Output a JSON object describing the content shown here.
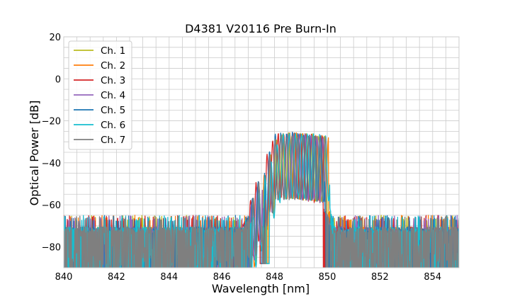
{
  "chart_data": {
    "type": "line",
    "title": "D4381 V20116 Pre Burn-In",
    "xlabel": "Wavelength [nm]",
    "ylabel": "Optical Power [dB]",
    "xlim": [
      840,
      855
    ],
    "ylim": [
      -90,
      20
    ],
    "x_ticks": [
      840,
      842,
      844,
      846,
      848,
      850,
      852,
      854
    ],
    "x_tick_labels": [
      "840",
      "842",
      "844",
      "846",
      "848",
      "850",
      "852",
      "854"
    ],
    "y_ticks": [
      20,
      0,
      -20,
      -40,
      -60,
      -80
    ],
    "y_tick_labels": [
      "20",
      "0",
      "−20",
      "−40",
      "−60",
      "−80"
    ],
    "x_minor_step": 0.5,
    "y_minor_step": 5,
    "grid": true,
    "legend_position": "top-left",
    "noise_floor_db": -72,
    "series": [
      {
        "name": "Ch. 1",
        "color": "#bcbd22",
        "center_nm": 848.55,
        "peak_db": -25.5,
        "seed": 11
      },
      {
        "name": "Ch. 2",
        "color": "#ff7f0e",
        "center_nm": 848.6,
        "peak_db": -24.5,
        "seed": 23
      },
      {
        "name": "Ch. 3",
        "color": "#d62728",
        "center_nm": 848.4,
        "peak_db": -25.5,
        "seed": 37
      },
      {
        "name": "Ch. 4",
        "color": "#9467bd",
        "center_nm": 848.5,
        "peak_db": -24.5,
        "seed": 41
      },
      {
        "name": "Ch. 5",
        "color": "#1f77b4",
        "center_nm": 848.45,
        "peak_db": -24.0,
        "seed": 53
      },
      {
        "name": "Ch. 6",
        "color": "#17becf",
        "center_nm": 848.65,
        "peak_db": -24.0,
        "seed": 67
      },
      {
        "name": "Ch. 7",
        "color": "#7f7f7f",
        "center_nm": 848.5,
        "peak_db": -27.0,
        "seed": 79
      }
    ]
  }
}
